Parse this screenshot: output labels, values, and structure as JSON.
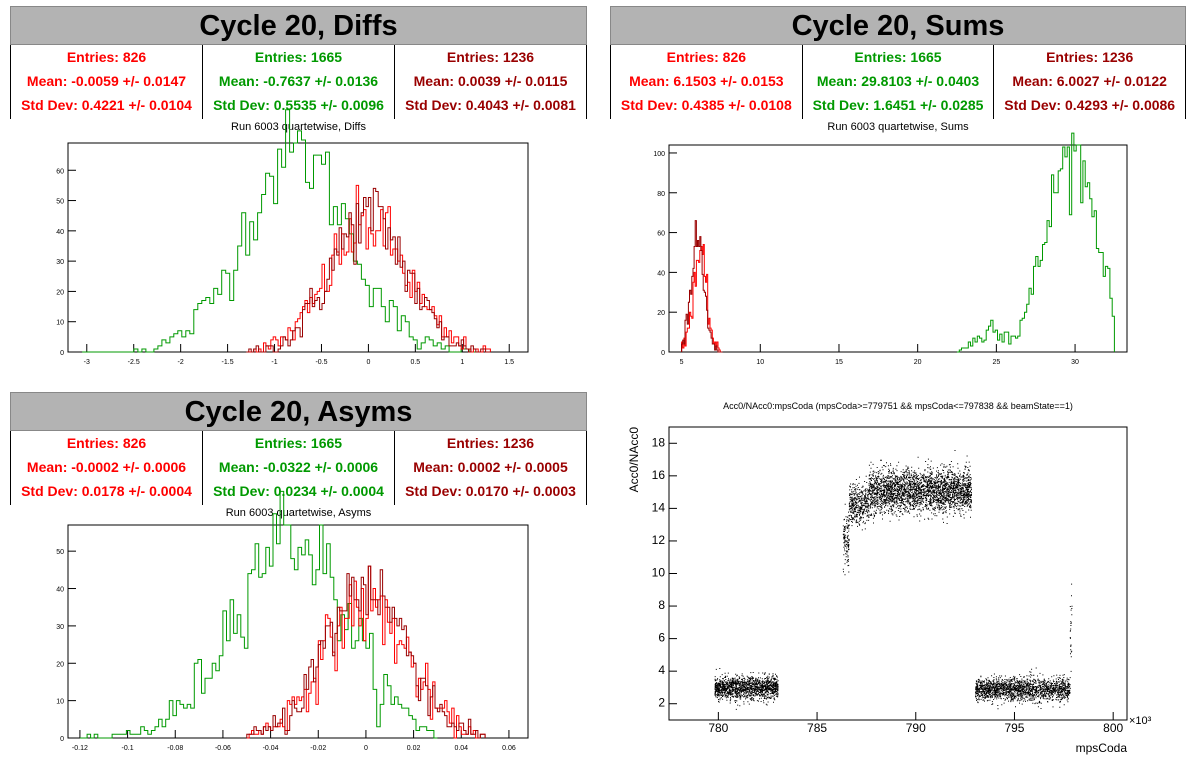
{
  "colors": {
    "red": "#ff0000",
    "green": "#009900",
    "darkred": "#990000",
    "banner": "#b3b3b3"
  },
  "panels": {
    "diffs": {
      "banner": "Cycle 20, Diffs",
      "subtitle": "Run 6003 quartetwise, Diffs",
      "stats": [
        {
          "entries": "Entries: 826",
          "mean": "Mean: -0.0059 +/- 0.0147",
          "std": "Std Dev: 0.4221 +/- 0.0104",
          "color": "#ff0000"
        },
        {
          "entries": "Entries: 1665",
          "mean": "Mean: -0.7637 +/- 0.0136",
          "std": "Std Dev: 0.5535 +/- 0.0096",
          "color": "#009900"
        },
        {
          "entries": "Entries: 1236",
          "mean": "Mean: 0.0039 +/- 0.0115",
          "std": "Std Dev: 0.4043 +/- 0.0081",
          "color": "#990000"
        }
      ]
    },
    "sums": {
      "banner": "Cycle 20, Sums",
      "subtitle": "Run 6003 quartetwise, Sums",
      "stats": [
        {
          "entries": "Entries: 826",
          "mean": "Mean: 6.1503 +/- 0.0153",
          "std": "Std Dev: 0.4385 +/- 0.0108",
          "color": "#ff0000"
        },
        {
          "entries": "Entries: 1665",
          "mean": "Mean: 29.8103 +/- 0.0403",
          "std": "Std Dev: 1.6451 +/- 0.0285",
          "color": "#009900"
        },
        {
          "entries": "Entries: 1236",
          "mean": "Mean: 6.0027 +/- 0.0122",
          "std": "Std Dev: 0.4293 +/- 0.0086",
          "color": "#990000"
        }
      ]
    },
    "asyms": {
      "banner": "Cycle 20, Asyms",
      "subtitle": "Run 6003 quartetwise, Asyms",
      "stats": [
        {
          "entries": "Entries: 826",
          "mean": "Mean: -0.0002 +/- 0.0006",
          "std": "Std Dev: 0.0178 +/- 0.0004",
          "color": "#ff0000"
        },
        {
          "entries": "Entries: 1665",
          "mean": "Mean: -0.0322 +/- 0.0006",
          "std": "Std Dev: 0.0234 +/- 0.0004",
          "color": "#009900"
        },
        {
          "entries": "Entries: 1236",
          "mean": "Mean: 0.0002 +/- 0.0005",
          "std": "Std Dev: 0.0170 +/- 0.0003",
          "color": "#990000"
        }
      ]
    },
    "scatter": {
      "subtitle": "Acc0/NAcc0:mpsCoda (mpsCoda>=779751 && mpsCoda<=797838 && beamState==1)"
    }
  },
  "chart_data": [
    {
      "type": "histogram",
      "id": "diffs",
      "xlim": [
        -3.2,
        1.7
      ],
      "ylim": [
        0,
        69
      ],
      "xticks": [
        -3,
        -2.5,
        -2,
        -1.5,
        -1,
        -0.5,
        0,
        0.5,
        1,
        1.5
      ],
      "yticks": [
        0,
        10,
        20,
        30,
        40,
        50,
        60
      ],
      "series": [
        {
          "color": "#009900",
          "mean": -0.7637,
          "std": 0.5535,
          "peak": 66,
          "lo": -3.05,
          "hi": 1.2,
          "bins": 100
        },
        {
          "color": "#ff0000",
          "mean": -0.0059,
          "std": 0.4221,
          "peak": 42,
          "lo": -1.3,
          "hi": 1.3,
          "bins": 100
        },
        {
          "color": "#990000",
          "mean": 0.0039,
          "std": 0.4043,
          "peak": 45,
          "lo": -1.3,
          "hi": 1.3,
          "bins": 100
        }
      ]
    },
    {
      "type": "histogram",
      "id": "sums",
      "xlim": [
        4.2,
        33.3
      ],
      "ylim": [
        0,
        104
      ],
      "xticks": [
        5,
        10,
        15,
        20,
        25,
        30
      ],
      "yticks": [
        0,
        20,
        40,
        60,
        80,
        100
      ],
      "series": [
        {
          "color": "#009900",
          "mean": 29.81,
          "std": 1.6451,
          "peak": 100,
          "lo": 22.5,
          "hi": 32.5,
          "bins": 70,
          "extra": [
            [
              23.2,
              3
            ],
            [
              24.0,
              6
            ],
            [
              24.8,
              12
            ],
            [
              25.4,
              5
            ]
          ]
        },
        {
          "color": "#ff0000",
          "mean": 6.1503,
          "std": 0.4385,
          "peak": 48,
          "lo": 5.0,
          "hi": 7.6,
          "bins": 36
        },
        {
          "color": "#990000",
          "mean": 6.0027,
          "std": 0.4293,
          "peak": 56,
          "lo": 5.0,
          "hi": 7.6,
          "bins": 36
        }
      ]
    },
    {
      "type": "histogram",
      "id": "asyms",
      "xlim": [
        -0.125,
        0.068
      ],
      "ylim": [
        0,
        57
      ],
      "xticks": [
        -0.12,
        -0.1,
        -0.08,
        -0.06,
        -0.04,
        -0.02,
        0,
        0.02,
        0.04,
        0.06
      ],
      "yticks": [
        0,
        10,
        20,
        30,
        40,
        50
      ],
      "series": [
        {
          "color": "#009900",
          "mean": -0.0322,
          "std": 0.0234,
          "peak": 55,
          "lo": -0.12,
          "hi": 0.03,
          "bins": 100
        },
        {
          "color": "#ff0000",
          "mean": -0.0002,
          "std": 0.0178,
          "peak": 36,
          "lo": -0.05,
          "hi": 0.05,
          "bins": 100
        },
        {
          "color": "#990000",
          "mean": 0.0002,
          "std": 0.017,
          "peak": 41,
          "lo": -0.05,
          "hi": 0.05,
          "bins": 100
        }
      ]
    },
    {
      "type": "scatter",
      "id": "acc",
      "xlabel": "mpsCoda",
      "ylabel": "Acc0/NAcc0",
      "xscale_label": "×10³",
      "xlim": [
        777.5,
        800.7
      ],
      "ylim": [
        1,
        19
      ],
      "xticks": [
        780,
        785,
        790,
        795,
        800
      ],
      "yticks": [
        2,
        4,
        6,
        8,
        10,
        12,
        14,
        16,
        18
      ],
      "clusters": [
        {
          "x": [
            779.8,
            783.0
          ],
          "y_center": 3.0,
          "y_spread": 0.35,
          "n": 1400
        },
        {
          "x": [
            786.3,
            786.6
          ],
          "y_center": 12.0,
          "y_spread": 0.8,
          "n": 120
        },
        {
          "x": [
            786.6,
            787.6
          ],
          "y_center": 14.3,
          "y_spread": 0.6,
          "n": 400
        },
        {
          "x": [
            787.6,
            792.8
          ],
          "y_center": 15.1,
          "y_spread": 0.65,
          "n": 2800
        },
        {
          "x": [
            793.0,
            797.8
          ],
          "y_center": 2.9,
          "y_spread": 0.35,
          "n": 1800
        },
        {
          "x": [
            797.8,
            797.9
          ],
          "y_center": 6.5,
          "y_spread": 1.8,
          "n": 25
        }
      ]
    }
  ]
}
